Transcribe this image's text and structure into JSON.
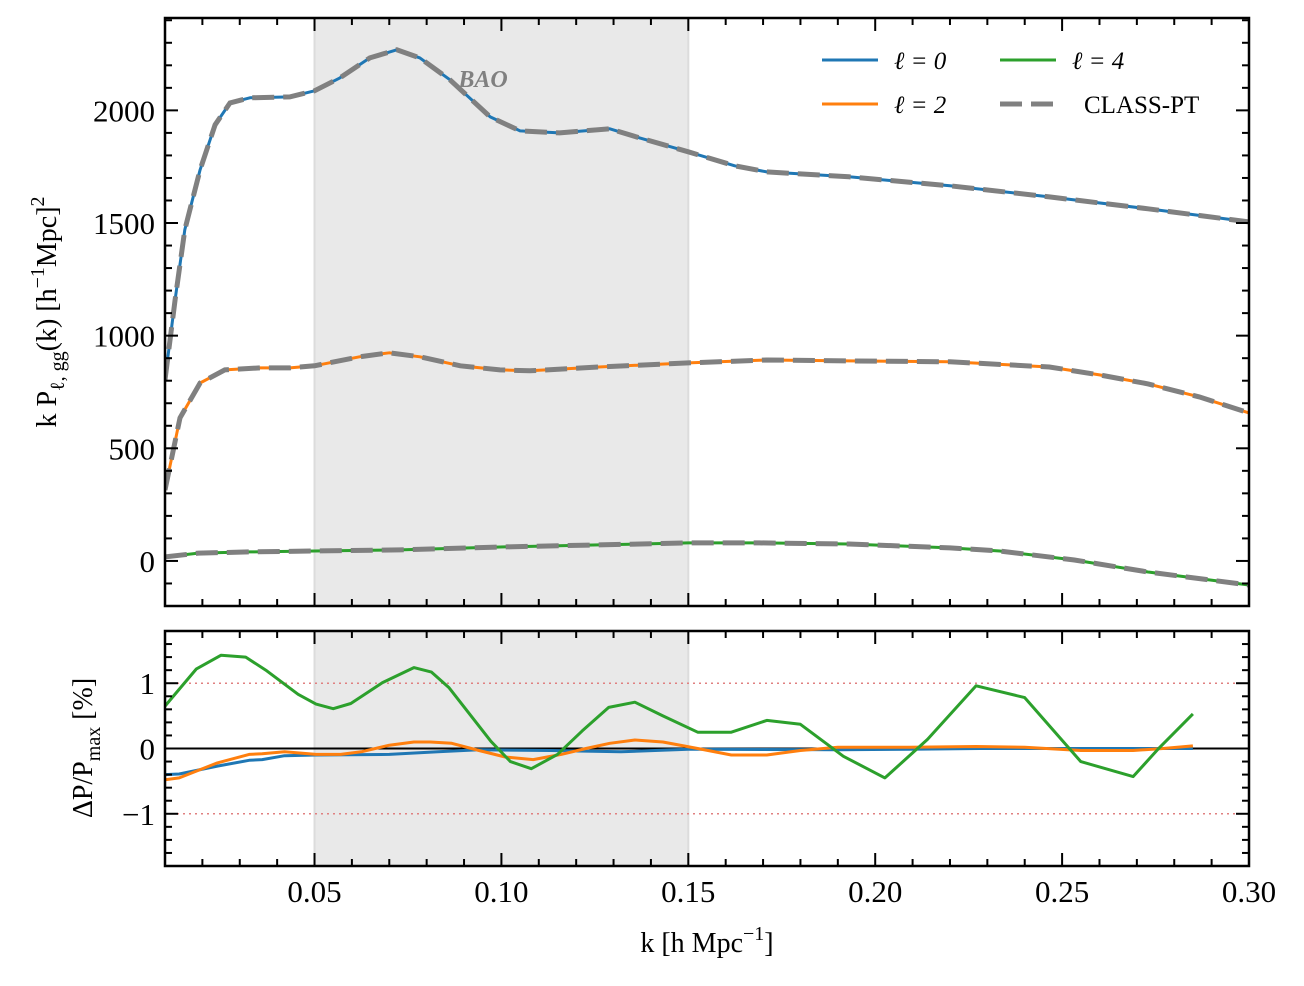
{
  "chart_data": [
    {
      "type": "line",
      "panel": "top",
      "xlabel": "k  [h Mpc^{−1}]",
      "ylabel": "k P_{ℓ, gg}(k)  [h^{−1}Mpc]^{2}",
      "xlim": [
        0.01,
        0.3
      ],
      "ylim": [
        -200,
        2410
      ],
      "yticks": [
        0,
        500,
        1000,
        1500,
        2000
      ],
      "xticks": [
        0.05,
        0.1,
        0.15,
        0.2,
        0.25,
        0.3
      ],
      "xtick_labels": [
        "0.05",
        "0.10",
        "0.15",
        "0.20",
        "0.25",
        "0.30"
      ],
      "grid": false,
      "shaded_region": {
        "x": [
          0.05,
          0.15
        ],
        "color": "#e9e9e9",
        "label": "BAO"
      },
      "legend": {
        "placement": "top-right",
        "entries": [
          "ℓ = 0",
          "ℓ = 2",
          "ℓ = 4",
          "CLASS-PT"
        ]
      },
      "series": [
        {
          "name": "ℓ = 0",
          "color": "#1f77b4",
          "x": [
            0.01,
            0.0127,
            0.0153,
            0.0194,
            0.0234,
            0.0274,
            0.0327,
            0.0434,
            0.05,
            0.0568,
            0.0648,
            0.072,
            0.0782,
            0.0862,
            0.097,
            0.105,
            0.1156,
            0.129,
            0.137,
            0.15,
            0.1624,
            0.171,
            0.193,
            0.22,
            0.2466,
            0.273,
            0.3
          ],
          "y": [
            804,
            1159,
            1470,
            1736,
            1936,
            2033,
            2056,
            2060,
            2087,
            2144,
            2233,
            2269,
            2233,
            2136,
            1971,
            1909,
            1900,
            1918,
            1878,
            1816,
            1754,
            1727,
            1705,
            1665,
            1616,
            1563,
            1505
          ]
        },
        {
          "name": "ℓ = 2",
          "color": "#ff7f0e",
          "x": [
            0.01,
            0.014,
            0.0194,
            0.026,
            0.0354,
            0.0434,
            0.05,
            0.062,
            0.07,
            0.0782,
            0.089,
            0.0996,
            0.1076,
            0.126,
            0.15,
            0.171,
            0.193,
            0.22,
            0.2466,
            0.26,
            0.273,
            0.2867,
            0.3
          ],
          "y": [
            315,
            635,
            790,
            848,
            857,
            857,
            866,
            906,
            924,
            906,
            866,
            848,
            844,
            861,
            879,
            892,
            888,
            884,
            861,
            826,
            786,
            728,
            657
          ]
        },
        {
          "name": "ℓ = 4",
          "color": "#2ca02c",
          "x": [
            0.01,
            0.019,
            0.0327,
            0.05,
            0.0728,
            0.0996,
            0.126,
            0.15,
            0.169,
            0.193,
            0.22,
            0.2333,
            0.2533,
            0.273,
            0.3
          ],
          "y": [
            18,
            35,
            40,
            44,
            49,
            62,
            71,
            80,
            80,
            75,
            58,
            44,
            4,
            -49,
            -107
          ]
        },
        {
          "name": "CLASS-PT",
          "color": "#808080",
          "style": "dashed",
          "overlays": [
            "ℓ = 0",
            "ℓ = 2",
            "ℓ = 4"
          ]
        }
      ]
    },
    {
      "type": "line",
      "panel": "bottom",
      "xlabel": "k  [h Mpc^{−1}]",
      "ylabel": "ΔP/P_{max}  [%]",
      "xlim": [
        0.01,
        0.3
      ],
      "ylim": [
        -1.8,
        1.8
      ],
      "yticks": [
        -1,
        0,
        1
      ],
      "ytick_labels": [
        "−1",
        "0",
        "1"
      ],
      "reference_lines": [
        {
          "y": 0,
          "color": "#000000",
          "style": "solid"
        },
        {
          "y": 1,
          "color": "#e08080",
          "style": "dotted"
        },
        {
          "y": -1,
          "color": "#e08080",
          "style": "dotted"
        }
      ],
      "shaded_region": {
        "x": [
          0.05,
          0.15
        ],
        "color": "#e9e9e9"
      },
      "series": [
        {
          "name": "ℓ = 0",
          "color": "#1f77b4",
          "x": [
            0.01,
            0.0138,
            0.024,
            0.0325,
            0.036,
            0.042,
            0.0504,
            0.07,
            0.083,
            0.094,
            0.113,
            0.132,
            0.15,
            0.153,
            0.19,
            0.209,
            0.228,
            0.285
          ],
          "y": [
            -0.4,
            -0.39,
            -0.27,
            -0.18,
            -0.17,
            -0.11,
            -0.1,
            -0.09,
            -0.05,
            -0.02,
            -0.03,
            -0.05,
            -0.01,
            -0.01,
            -0.02,
            -0.01,
            0.0,
            0.0
          ]
        },
        {
          "name": "ℓ = 2",
          "color": "#ff7f0e",
          "x": [
            0.01,
            0.0138,
            0.024,
            0.0325,
            0.036,
            0.042,
            0.0504,
            0.057,
            0.0625,
            0.07,
            0.0766,
            0.081,
            0.0867,
            0.094,
            0.101,
            0.1085,
            0.116,
            0.1226,
            0.129,
            0.1357,
            0.1432,
            0.1525,
            0.1615,
            0.171,
            0.18,
            0.19,
            0.209,
            0.227,
            0.24,
            0.255,
            0.269,
            0.277,
            0.285
          ],
          "y": [
            -0.48,
            -0.45,
            -0.22,
            -0.09,
            -0.08,
            -0.05,
            -0.09,
            -0.09,
            -0.05,
            0.05,
            0.1,
            0.1,
            0.08,
            -0.03,
            -0.13,
            -0.17,
            -0.09,
            0.0,
            0.08,
            0.13,
            0.1,
            0.0,
            -0.1,
            -0.1,
            -0.03,
            0.02,
            0.02,
            0.03,
            0.02,
            -0.03,
            -0.03,
            0.0,
            0.04
          ]
        },
        {
          "name": "ℓ = 4",
          "color": "#2ca02c",
          "x": [
            0.01,
            0.0184,
            0.025,
            0.0316,
            0.0372,
            0.0456,
            0.0504,
            0.055,
            0.0597,
            0.0682,
            0.0766,
            0.0813,
            0.086,
            0.0972,
            0.1024,
            0.108,
            0.115,
            0.1216,
            0.1287,
            0.1357,
            0.1432,
            0.1525,
            0.1615,
            0.171,
            0.18,
            0.1915,
            0.2026,
            0.214,
            0.227,
            0.24,
            0.255,
            0.269,
            0.276,
            0.285
          ],
          "y": [
            0.65,
            1.22,
            1.43,
            1.4,
            1.19,
            0.83,
            0.68,
            0.61,
            0.69,
            1.01,
            1.24,
            1.17,
            0.93,
            0.11,
            -0.2,
            -0.31,
            -0.09,
            0.27,
            0.63,
            0.71,
            0.5,
            0.25,
            0.25,
            0.43,
            0.37,
            -0.12,
            -0.45,
            0.14,
            0.96,
            0.78,
            -0.2,
            -0.43,
            0.01,
            0.53
          ]
        }
      ]
    }
  ]
}
